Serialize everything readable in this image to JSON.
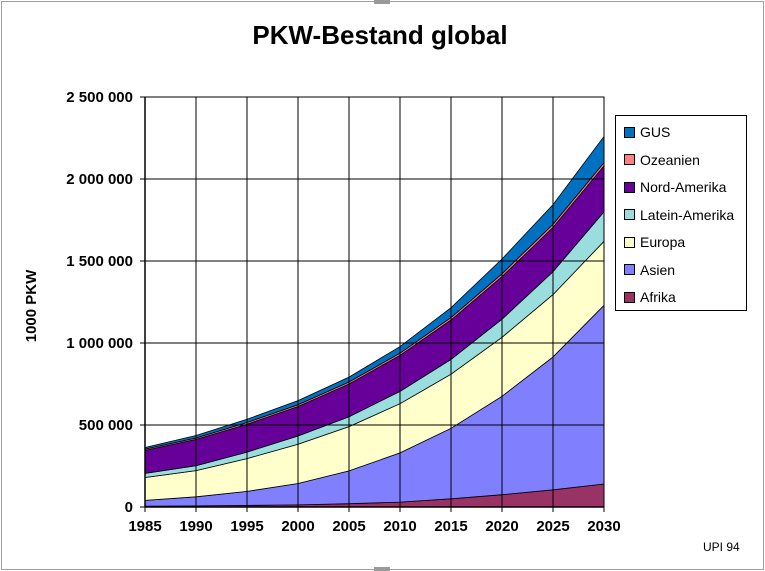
{
  "chart_data": {
    "type": "area",
    "stacked": true,
    "title": "PKW-Bestand global",
    "xlabel": "",
    "ylabel": "1000 PKW",
    "x": [
      1985,
      1990,
      1995,
      2000,
      2005,
      2010,
      2015,
      2020,
      2025,
      2030
    ],
    "ylim": [
      0,
      2500000
    ],
    "yticks": [
      0,
      500000,
      1000000,
      1500000,
      2000000,
      2500000
    ],
    "ytick_labels": [
      "0",
      "500 000",
      "1 000 000",
      "1 500 000",
      "2 000 000",
      "2 500 000"
    ],
    "xtick_labels": [
      "1985",
      "1990",
      "1995",
      "2000",
      "2005",
      "2010",
      "2015",
      "2020",
      "2025",
      "2030"
    ],
    "grid": true,
    "legend_position": "right",
    "series": [
      {
        "name": "Afrika",
        "color": "#993366",
        "values": [
          5000,
          7000,
          10000,
          13000,
          20000,
          30000,
          50000,
          75000,
          105000,
          140000
        ]
      },
      {
        "name": "Asien",
        "color": "#8080ff",
        "values": [
          35000,
          55000,
          85000,
          130000,
          200000,
          300000,
          430000,
          600000,
          810000,
          1090000
        ]
      },
      {
        "name": "Europa",
        "color": "#ffffcc",
        "values": [
          140000,
          160000,
          200000,
          240000,
          270000,
          300000,
          330000,
          360000,
          380000,
          390000
        ]
      },
      {
        "name": "Latein-Amerika",
        "color": "#99dddd",
        "values": [
          25000,
          30000,
          40000,
          50000,
          60000,
          75000,
          90000,
          110000,
          140000,
          180000
        ]
      },
      {
        "name": "Nord-Amerika",
        "color": "#660099",
        "values": [
          140000,
          160000,
          170000,
          180000,
          200000,
          220000,
          240000,
          260000,
          270000,
          280000
        ]
      },
      {
        "name": "Ozeanien",
        "color": "#ff8080",
        "values": [
          8000,
          9000,
          10000,
          11000,
          12000,
          13000,
          15000,
          17000,
          19000,
          20000
        ]
      },
      {
        "name": "GUS",
        "color": "#0070c0",
        "values": [
          10000,
          15000,
          20000,
          25000,
          30000,
          40000,
          60000,
          90000,
          120000,
          160000
        ]
      }
    ],
    "legend_order": [
      "GUS",
      "Ozeanien",
      "Nord-Amerika",
      "Latein-Amerika",
      "Europa",
      "Asien",
      "Afrika"
    ]
  },
  "source_note": "UPI 94"
}
